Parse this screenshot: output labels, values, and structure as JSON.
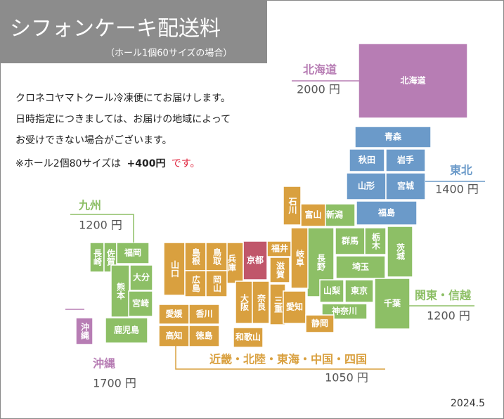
{
  "header": {
    "title": "シフォンケーキ配送料",
    "subtitle": "（ホール1個60サイズの場合）"
  },
  "notes": [
    "クロネコヤマトクール冷凍便にてお届けします。",
    "日時指定につきましては、お届けの地域によって",
    "お受けできない場合がございます。"
  ],
  "extra": {
    "prefix": "※ホール2個80サイズは",
    "amount": "+400円",
    "suffix": "です。",
    "color": "#e0213a"
  },
  "regions": [
    {
      "name": "北海道",
      "price": "2000 円",
      "color": "#b77db4",
      "prefectures": [
        "北海道"
      ]
    },
    {
      "name": "東北",
      "price": "1400 円",
      "color": "#6b9ac9",
      "prefectures": [
        "青森",
        "秋田",
        "岩手",
        "山形",
        "宮城",
        "福島"
      ]
    },
    {
      "name": "関東・信越",
      "price": "1200 円",
      "color": "#8dbf66",
      "prefectures": [
        "新潟",
        "長野",
        "群馬",
        "栃木",
        "茨城",
        "埼玉",
        "山梨",
        "東京",
        "千葉",
        "神奈川"
      ]
    },
    {
      "name": "近畿・北陸・東海・中国・四国",
      "price": "1050 円",
      "color": "#d9a03f",
      "prefectures": [
        "石川",
        "富山",
        "福井",
        "京都",
        "滋賀",
        "岐阜",
        "兵庫",
        "大阪",
        "奈良",
        "三重",
        "和歌山",
        "愛知",
        "静岡",
        "山口",
        "島根",
        "鳥取",
        "広島",
        "岡山",
        "愛媛",
        "香川",
        "高知",
        "徳島"
      ]
    },
    {
      "name": "九州",
      "price": "1200 円",
      "color": "#8dbf66",
      "prefectures": [
        "長崎",
        "佐賀",
        "福岡",
        "大分",
        "熊本",
        "宮崎",
        "鹿児島"
      ]
    },
    {
      "name": "沖縄",
      "price": "1700 円",
      "color": "#b77db4",
      "prefectures": [
        "沖縄"
      ]
    }
  ],
  "date": "2024.5"
}
